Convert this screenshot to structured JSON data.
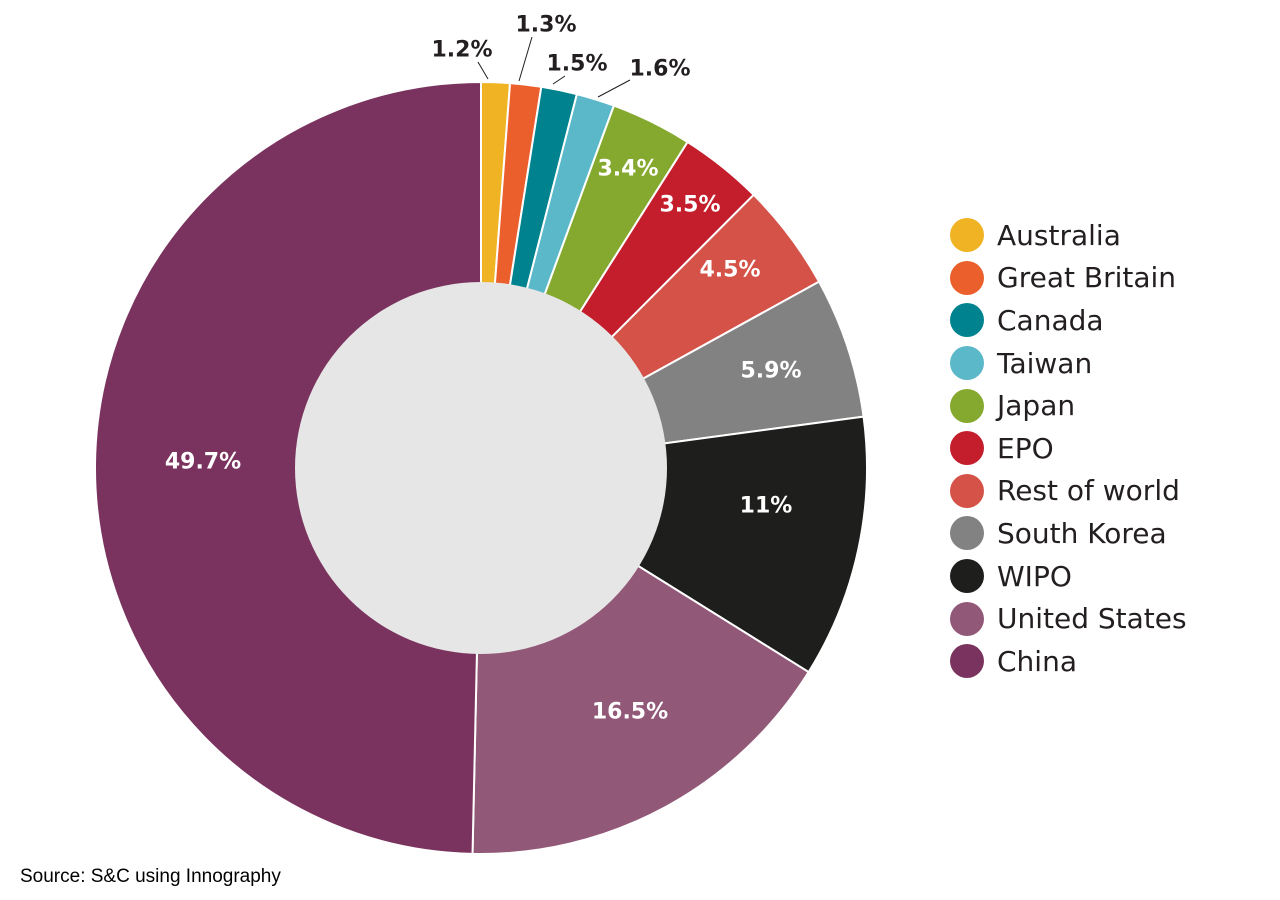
{
  "chart_data": {
    "type": "pie",
    "variant": "donut",
    "categories": [
      "Australia",
      "Great Britain",
      "Canada",
      "Taiwan",
      "Japan",
      "EPO",
      "Rest of world",
      "South Korea",
      "WIPO",
      "United States",
      "China"
    ],
    "values": [
      1.2,
      1.3,
      1.5,
      1.6,
      3.4,
      3.5,
      4.5,
      5.9,
      11,
      16.5,
      49.7
    ],
    "labels": [
      "1.2%",
      "1.3%",
      "1.5%",
      "1.6%",
      "3.4%",
      "3.5%",
      "4.5%",
      "5.9%",
      "11%",
      "16.5%",
      "49.7%"
    ],
    "colors": [
      "#f0b323",
      "#ea5f2c",
      "#00838f",
      "#5ab8c8",
      "#85a92e",
      "#c41e2d",
      "#d45247",
      "#828282",
      "#1e1e1c",
      "#925878",
      "#7a335e"
    ],
    "label_colors": [
      "#231f20",
      "#231f20",
      "#231f20",
      "#231f20",
      "#ffffff",
      "#ffffff",
      "#ffffff",
      "#ffffff",
      "#ffffff",
      "#ffffff",
      "#ffffff"
    ],
    "hole_color": "#e6e6e6",
    "legend_position": "right",
    "source": "Source: S&C using Innography"
  }
}
